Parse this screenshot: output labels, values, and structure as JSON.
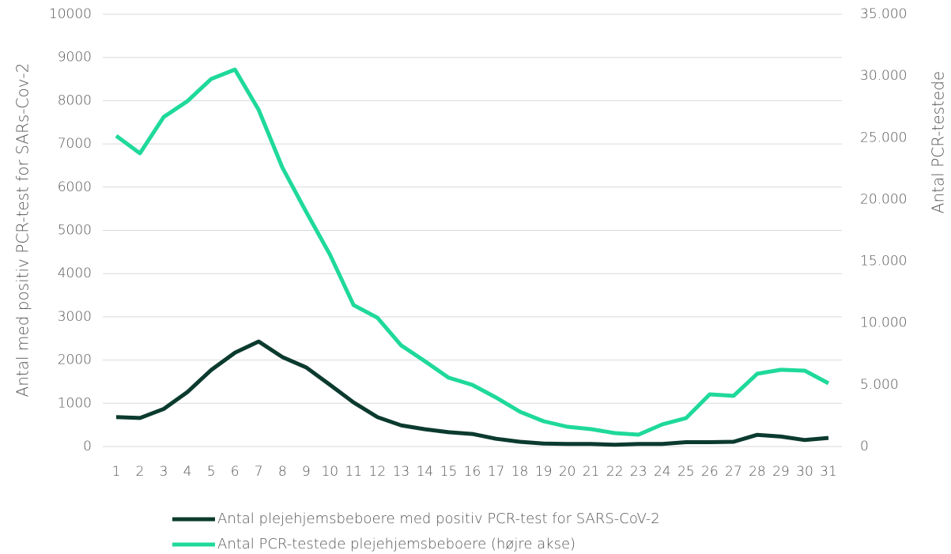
{
  "chart_data": {
    "type": "line",
    "ylabel": "Antal med positiv PCR-test for SARs-Cov-2",
    "y2label": "Antal PCR-testede",
    "categories": [
      "1",
      "2",
      "3",
      "4",
      "5",
      "6",
      "7",
      "8",
      "9",
      "10",
      "11",
      "12",
      "13",
      "14",
      "15",
      "16",
      "17",
      "18",
      "19",
      "20",
      "21",
      "22",
      "23",
      "24",
      "25",
      "26",
      "27",
      "28",
      "29",
      "30",
      "31"
    ],
    "series": [
      {
        "name": "Antal plejehjemsbeboere med positiv PCR-test for SARS-CoV-2",
        "color": "#0b3b2e",
        "values": [
          680,
          660,
          870,
          1260,
          1770,
          2170,
          2430,
          2070,
          1830,
          1430,
          1020,
          680,
          490,
          400,
          330,
          290,
          180,
          110,
          70,
          60,
          60,
          40,
          60,
          60,
          100,
          100,
          110,
          270,
          230,
          150,
          200
        ]
      },
      {
        "name": "Antal PCR-testede plejehjemsbeboere (højre akse)",
        "color": "#1fd99b",
        "axis": "y2",
        "values": [
          25150,
          23740,
          26680,
          27960,
          29760,
          30520,
          27260,
          22590,
          19000,
          15550,
          11450,
          10430,
          8190,
          6910,
          5570,
          4990,
          3970,
          2820,
          2050,
          1600,
          1410,
          1090,
          960,
          1790,
          2300,
          4220,
          4100,
          5890,
          6210,
          6140,
          5120
        ]
      }
    ],
    "ylim": [
      0,
      10000
    ],
    "yticks": [
      0,
      1000,
      2000,
      3000,
      4000,
      5000,
      6000,
      7000,
      8000,
      9000,
      10000
    ],
    "y2lim": [
      0,
      35000
    ],
    "y2ticks": [
      0,
      {
        "value": 5000,
        "label": "5.000"
      },
      {
        "value": 10000,
        "label": "10.000"
      },
      {
        "value": 15000,
        "label": "15.000"
      },
      {
        "value": 20000,
        "label": "20.000"
      },
      {
        "value": 25000,
        "label": "25.000"
      },
      {
        "value": 30000,
        "label": "30.000"
      },
      {
        "value": 35000,
        "label": "35.000"
      }
    ],
    "grid": true,
    "legend": "bottom"
  }
}
